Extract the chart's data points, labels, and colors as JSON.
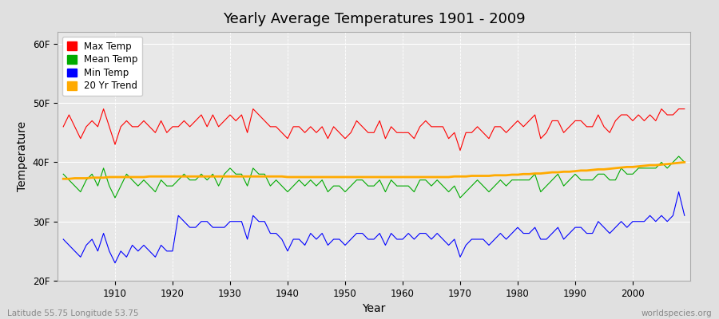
{
  "title": "Yearly Average Temperatures 1901 - 2009",
  "xlabel": "Year",
  "ylabel": "Temperature",
  "ylim": [
    20,
    62
  ],
  "yticks": [
    20,
    30,
    40,
    50,
    60
  ],
  "ytick_labels": [
    "20F",
    "30F",
    "40F",
    "50F",
    "60F"
  ],
  "xlim": [
    1900,
    2010
  ],
  "years": [
    1901,
    1902,
    1903,
    1904,
    1905,
    1906,
    1907,
    1908,
    1909,
    1910,
    1911,
    1912,
    1913,
    1914,
    1915,
    1916,
    1917,
    1918,
    1919,
    1920,
    1921,
    1922,
    1923,
    1924,
    1925,
    1926,
    1927,
    1928,
    1929,
    1930,
    1931,
    1932,
    1933,
    1934,
    1935,
    1936,
    1937,
    1938,
    1939,
    1940,
    1941,
    1942,
    1943,
    1944,
    1945,
    1946,
    1947,
    1948,
    1949,
    1950,
    1951,
    1952,
    1953,
    1954,
    1955,
    1956,
    1957,
    1958,
    1959,
    1960,
    1961,
    1962,
    1963,
    1964,
    1965,
    1966,
    1967,
    1968,
    1969,
    1970,
    1971,
    1972,
    1973,
    1974,
    1975,
    1976,
    1977,
    1978,
    1979,
    1980,
    1981,
    1982,
    1983,
    1984,
    1985,
    1986,
    1987,
    1988,
    1989,
    1990,
    1991,
    1992,
    1993,
    1994,
    1995,
    1996,
    1997,
    1998,
    1999,
    2000,
    2001,
    2002,
    2003,
    2004,
    2005,
    2006,
    2007,
    2008,
    2009
  ],
  "max_temp": [
    46,
    48,
    46,
    44,
    46,
    47,
    46,
    49,
    46,
    43,
    46,
    47,
    46,
    46,
    47,
    46,
    45,
    47,
    45,
    46,
    46,
    47,
    46,
    47,
    48,
    46,
    48,
    46,
    47,
    48,
    47,
    48,
    45,
    49,
    48,
    47,
    46,
    46,
    45,
    44,
    46,
    46,
    45,
    46,
    45,
    46,
    44,
    46,
    45,
    44,
    45,
    47,
    46,
    45,
    45,
    47,
    44,
    46,
    45,
    45,
    45,
    44,
    46,
    47,
    46,
    46,
    46,
    44,
    45,
    42,
    45,
    45,
    46,
    45,
    44,
    46,
    46,
    45,
    46,
    47,
    46,
    47,
    48,
    44,
    45,
    47,
    47,
    45,
    46,
    47,
    47,
    46,
    46,
    48,
    46,
    45,
    47,
    48,
    48,
    47,
    48,
    47,
    48,
    47,
    49,
    48,
    48,
    49,
    49
  ],
  "mean_temp": [
    38,
    37,
    36,
    35,
    37,
    38,
    36,
    39,
    36,
    34,
    36,
    38,
    37,
    36,
    37,
    36,
    35,
    37,
    36,
    36,
    37,
    38,
    37,
    37,
    38,
    37,
    38,
    36,
    38,
    39,
    38,
    38,
    36,
    39,
    38,
    38,
    36,
    37,
    36,
    35,
    36,
    37,
    36,
    37,
    36,
    37,
    35,
    36,
    36,
    35,
    36,
    37,
    37,
    36,
    36,
    37,
    35,
    37,
    36,
    36,
    36,
    35,
    37,
    37,
    36,
    37,
    36,
    35,
    36,
    34,
    35,
    36,
    37,
    36,
    35,
    36,
    37,
    36,
    37,
    37,
    37,
    37,
    38,
    35,
    36,
    37,
    38,
    36,
    37,
    38,
    37,
    37,
    37,
    38,
    38,
    37,
    37,
    39,
    38,
    38,
    39,
    39,
    39,
    39,
    40,
    39,
    40,
    41,
    40
  ],
  "min_temp": [
    27,
    26,
    25,
    24,
    26,
    27,
    25,
    28,
    25,
    23,
    25,
    24,
    26,
    25,
    26,
    25,
    24,
    26,
    25,
    25,
    31,
    30,
    29,
    29,
    30,
    30,
    29,
    29,
    29,
    30,
    30,
    30,
    27,
    31,
    30,
    30,
    28,
    28,
    27,
    25,
    27,
    27,
    26,
    28,
    27,
    28,
    26,
    27,
    27,
    26,
    27,
    28,
    28,
    27,
    27,
    28,
    26,
    28,
    27,
    27,
    28,
    27,
    28,
    28,
    27,
    28,
    27,
    26,
    27,
    24,
    26,
    27,
    27,
    27,
    26,
    27,
    28,
    27,
    28,
    29,
    28,
    28,
    29,
    27,
    27,
    28,
    29,
    27,
    28,
    29,
    29,
    28,
    28,
    30,
    29,
    28,
    29,
    30,
    29,
    30,
    30,
    30,
    31,
    30,
    31,
    30,
    31,
    35,
    31
  ],
  "trend": [
    37.2,
    37.2,
    37.3,
    37.3,
    37.3,
    37.4,
    37.4,
    37.4,
    37.5,
    37.5,
    37.5,
    37.5,
    37.5,
    37.5,
    37.5,
    37.6,
    37.6,
    37.6,
    37.6,
    37.6,
    37.6,
    37.6,
    37.6,
    37.6,
    37.6,
    37.6,
    37.6,
    37.6,
    37.6,
    37.6,
    37.6,
    37.6,
    37.6,
    37.6,
    37.6,
    37.6,
    37.6,
    37.6,
    37.6,
    37.5,
    37.5,
    37.5,
    37.5,
    37.5,
    37.5,
    37.5,
    37.5,
    37.5,
    37.5,
    37.5,
    37.5,
    37.5,
    37.5,
    37.5,
    37.5,
    37.5,
    37.5,
    37.5,
    37.5,
    37.5,
    37.5,
    37.5,
    37.5,
    37.5,
    37.5,
    37.5,
    37.5,
    37.5,
    37.6,
    37.6,
    37.6,
    37.7,
    37.7,
    37.7,
    37.7,
    37.8,
    37.8,
    37.8,
    37.9,
    37.9,
    38.0,
    38.0,
    38.1,
    38.1,
    38.2,
    38.3,
    38.3,
    38.4,
    38.4,
    38.5,
    38.6,
    38.6,
    38.7,
    38.8,
    38.8,
    38.9,
    39.0,
    39.1,
    39.2,
    39.2,
    39.3,
    39.4,
    39.5,
    39.5,
    39.6,
    39.7,
    39.8,
    39.9,
    40.0
  ],
  "fig_bg_color": "#e0e0e0",
  "plot_bg_color": "#e8e8e8",
  "max_color": "#ff0000",
  "mean_color": "#00aa00",
  "min_color": "#0000ff",
  "trend_color": "#ffaa00",
  "grid_color": "#ffffff",
  "footnote_left": "Latitude 55.75 Longitude 53.75",
  "footnote_right": "worldspecies.org",
  "legend_labels": [
    "Max Temp",
    "Mean Temp",
    "Min Temp",
    "20 Yr Trend"
  ]
}
